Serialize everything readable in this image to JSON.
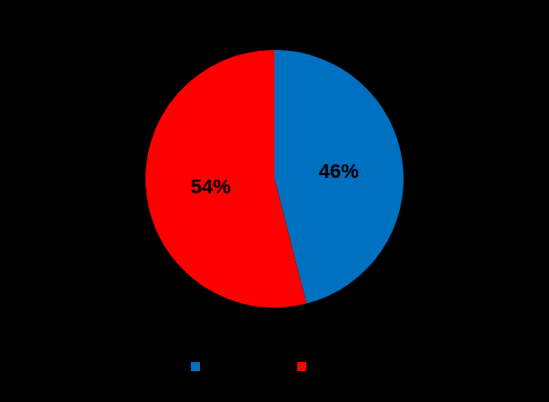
{
  "chart_data": {
    "type": "pie",
    "values": [
      46,
      54
    ],
    "value_labels": [
      "46%",
      "54%"
    ],
    "colors": [
      "#0070c0",
      "#ff0000"
    ],
    "data_labels": true
  }
}
